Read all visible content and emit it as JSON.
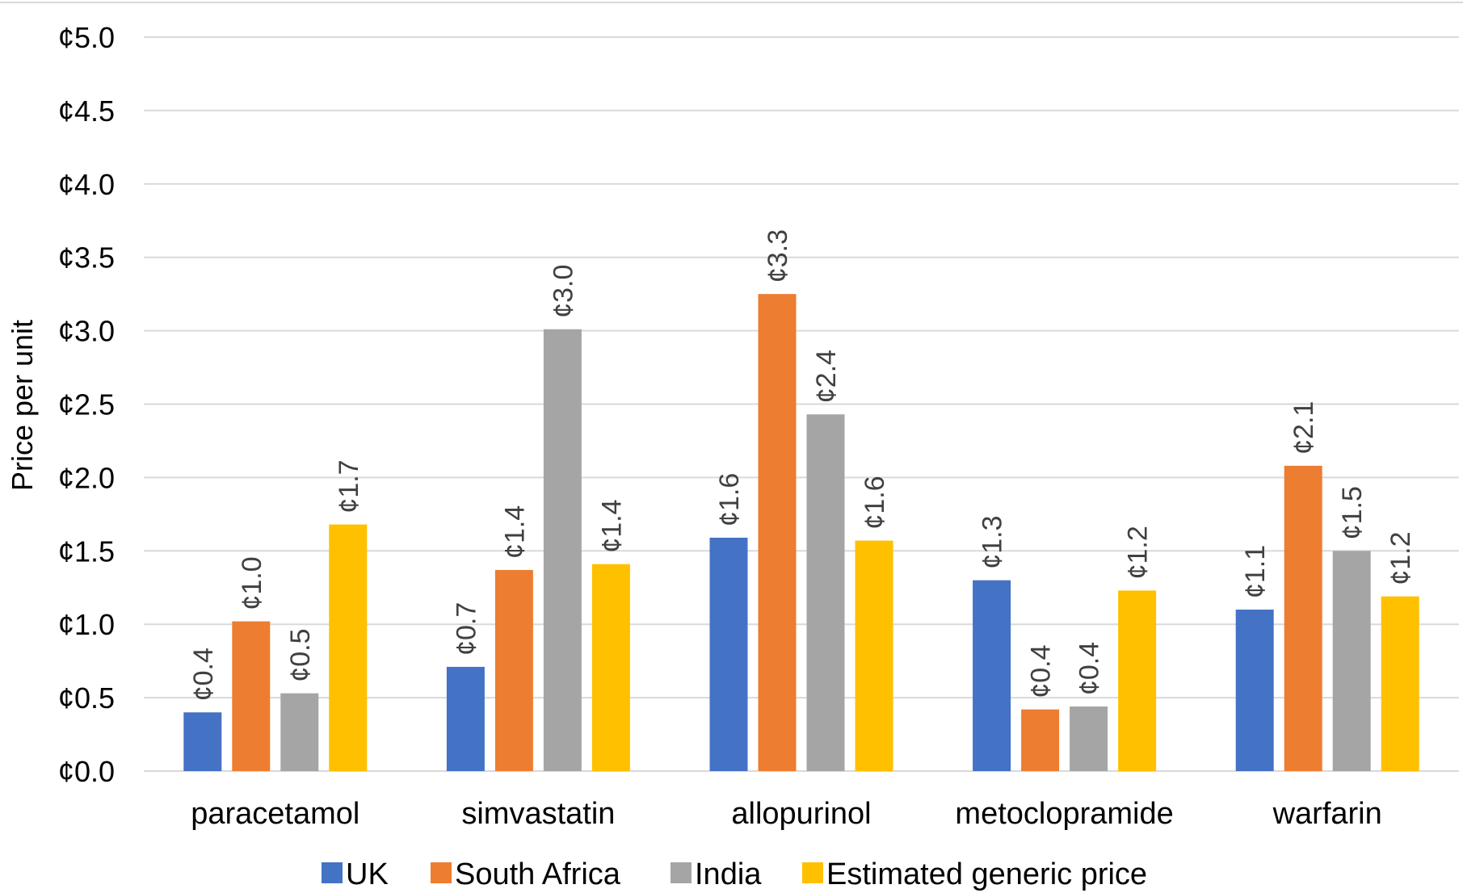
{
  "chart_data": {
    "type": "bar",
    "ylabel": "Price per unit",
    "xlabel": "",
    "ylim": [
      0,
      5
    ],
    "y_ticks": [
      "¢0.0",
      "¢0.5",
      "¢1.0",
      "¢1.5",
      "¢2.0",
      "¢2.5",
      "¢3.0",
      "¢3.5",
      "¢4.0",
      "¢4.5",
      "¢5.0"
    ],
    "categories": [
      "paracetamol",
      "simvastatin",
      "allopurinol",
      "metoclopramide",
      "warfarin"
    ],
    "grid": true,
    "legend_position": "bottom",
    "series": [
      {
        "name": "UK",
        "color": "#4472c4",
        "values": [
          0.4,
          0.71,
          1.59,
          1.3,
          1.1
        ],
        "labels": [
          "¢0.4",
          "¢0.7",
          "¢1.6",
          "¢1.3",
          "¢1.1"
        ]
      },
      {
        "name": "South Africa",
        "color": "#ed7d31",
        "values": [
          1.02,
          1.37,
          3.25,
          0.42,
          2.08
        ],
        "labels": [
          "¢1.0",
          "¢1.4",
          "¢3.3",
          "¢0.4",
          "¢2.1"
        ]
      },
      {
        "name": "India",
        "color": "#a5a5a5",
        "values": [
          0.53,
          3.01,
          2.43,
          0.44,
          1.5
        ],
        "labels": [
          "¢0.5",
          "¢3.0",
          "¢2.4",
          "¢0.4",
          "¢1.5"
        ]
      },
      {
        "name": "Estimated generic price",
        "color": "#ffc000",
        "values": [
          1.68,
          1.41,
          1.57,
          1.23,
          1.19
        ],
        "labels": [
          "¢1.7",
          "¢1.4",
          "¢1.6",
          "¢1.2",
          "¢1.2"
        ]
      }
    ]
  }
}
